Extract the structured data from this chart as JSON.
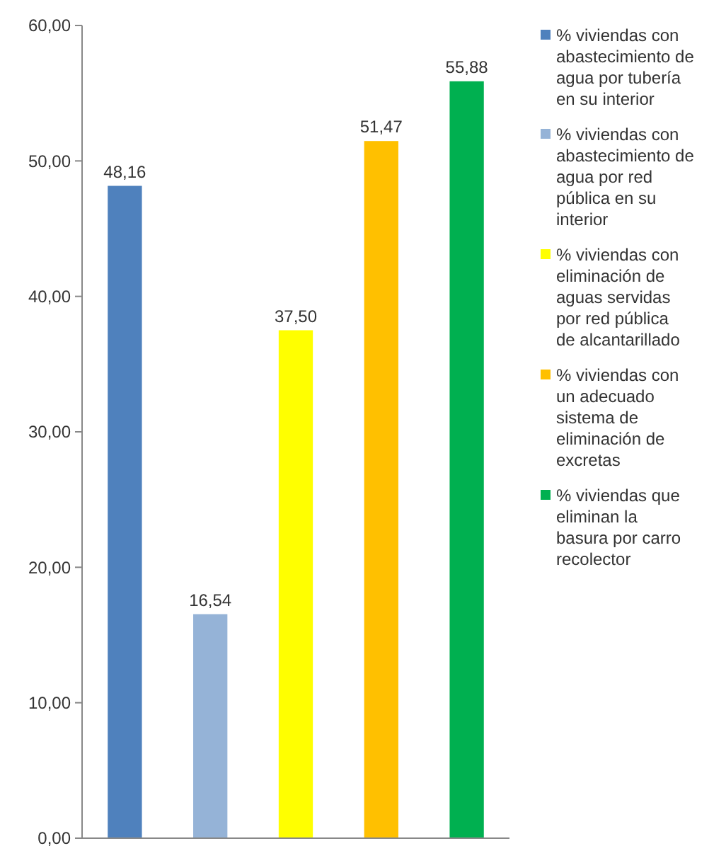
{
  "chart_data": {
    "type": "bar",
    "categories": [
      null,
      null,
      null,
      null,
      null
    ],
    "series": [
      {
        "name": "% viviendas con abastecimiento de agua por tubería en su interior",
        "color": "#4f81bd",
        "values": [
          48.16,
          null,
          null,
          null,
          null
        ],
        "value_labels": [
          "48,16",
          null,
          null,
          null,
          null
        ]
      },
      {
        "name": "% viviendas con abastecimiento de agua por red pública en su interior",
        "color": "#95b3d7",
        "values": [
          null,
          16.54,
          null,
          null,
          null
        ],
        "value_labels": [
          null,
          "16,54",
          null,
          null,
          null
        ]
      },
      {
        "name": "% viviendas con eliminación de aguas servidas por red pública de alcantarillado",
        "color": "#ffff00",
        "values": [
          null,
          null,
          37.5,
          null,
          null
        ],
        "value_labels": [
          null,
          null,
          "37,50",
          null,
          null
        ]
      },
      {
        "name": "% viviendas con un adecuado sistema de eliminación de excretas",
        "color": "#ffc000",
        "values": [
          null,
          null,
          null,
          51.47,
          null
        ],
        "value_labels": [
          null,
          null,
          null,
          "51,47",
          null
        ]
      },
      {
        "name": "% viviendas que eliminan la basura por carro recolector",
        "color": "#00b050",
        "values": [
          null,
          null,
          null,
          null,
          55.88
        ],
        "value_labels": [
          null,
          null,
          null,
          null,
          "55,88"
        ]
      }
    ],
    "ylim": [
      0,
      60
    ],
    "yticks": [
      {
        "value": 0,
        "label": "0,00"
      },
      {
        "value": 10,
        "label": "10,00"
      },
      {
        "value": 20,
        "label": "20,00"
      },
      {
        "value": 30,
        "label": "30,00"
      },
      {
        "value": 40,
        "label": "40,00"
      },
      {
        "value": 50,
        "label": "50,00"
      },
      {
        "value": 60,
        "label": "60,00"
      }
    ],
    "grid": false,
    "legend": "right"
  }
}
